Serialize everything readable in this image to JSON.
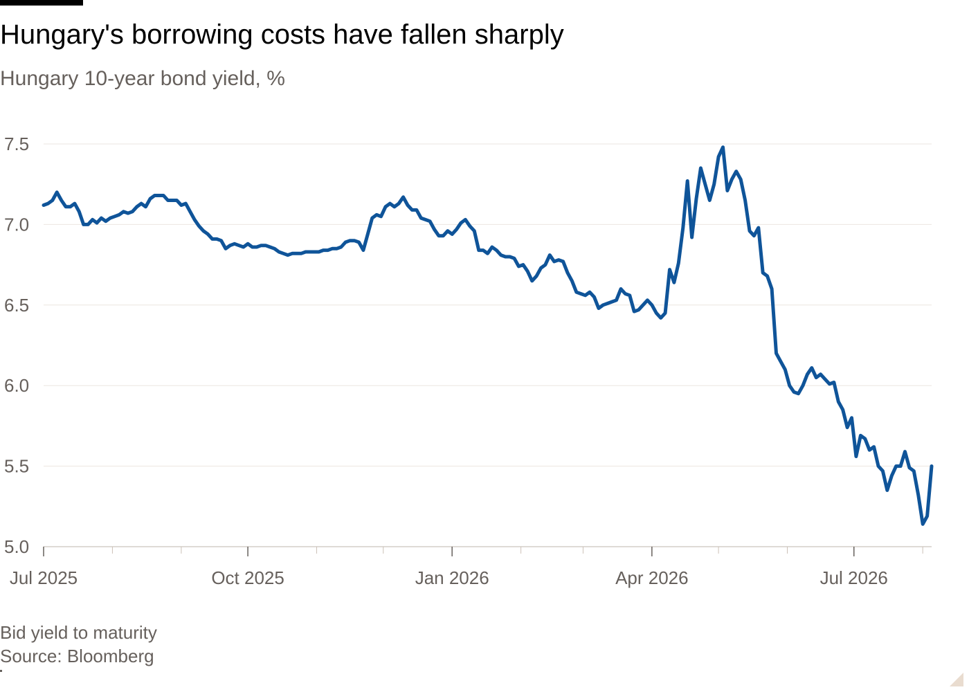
{
  "header": {
    "title": "Hungary's borrowing costs have fallen sharply",
    "subtitle": "Hungary 10-year bond yield, %"
  },
  "footer": {
    "note": "Bid yield to maturity",
    "source": "Source: Bloomberg"
  },
  "colors": {
    "line": "#0f5499",
    "grid": "#ebe6e0",
    "axis": "#66605c",
    "text_muted": "#66605c"
  },
  "chart_data": {
    "type": "line",
    "title": "Hungary's borrowing costs have fallen sharply",
    "subtitle": "Hungary 10-year bond yield, %",
    "xlabel": "",
    "ylabel": "",
    "ylim": [
      5.0,
      7.5
    ],
    "yticks": [
      {
        "value": 7.5,
        "label": "7.5"
      },
      {
        "value": 7.0,
        "label": "7.0"
      },
      {
        "value": 6.5,
        "label": "6.5"
      },
      {
        "value": 6.0,
        "label": "6.0"
      },
      {
        "value": 5.5,
        "label": "5.5"
      },
      {
        "value": 5.0,
        "label": "5.0"
      }
    ],
    "xlim": [
      "2025-07-01",
      "2026-08-05"
    ],
    "xticks_labeled": [
      {
        "date": "2025-07-01",
        "label": "Jul 2025"
      },
      {
        "date": "2025-10-01",
        "label": "Oct 2025"
      },
      {
        "date": "2026-01-01",
        "label": "Jan 2026"
      },
      {
        "date": "2026-04-01",
        "label": "Apr 2026"
      },
      {
        "date": "2026-07-01",
        "label": "Jul 2026"
      }
    ],
    "xticks_minor": [
      "2025-08-01",
      "2025-09-01",
      "2025-11-01",
      "2025-12-01",
      "2026-02-01",
      "2026-03-01",
      "2026-05-01",
      "2026-06-01",
      "2026-08-01"
    ],
    "grid": true,
    "legend": "none",
    "series": [
      {
        "color": "#0f5499",
        "points": [
          [
            "2025-07-01",
            7.12
          ],
          [
            "2025-07-03",
            7.13
          ],
          [
            "2025-07-05",
            7.15
          ],
          [
            "2025-07-07",
            7.2
          ],
          [
            "2025-07-09",
            7.15
          ],
          [
            "2025-07-11",
            7.11
          ],
          [
            "2025-07-13",
            7.11
          ],
          [
            "2025-07-15",
            7.13
          ],
          [
            "2025-07-17",
            7.08
          ],
          [
            "2025-07-19",
            7.0
          ],
          [
            "2025-07-21",
            7.0
          ],
          [
            "2025-07-23",
            7.03
          ],
          [
            "2025-07-25",
            7.01
          ],
          [
            "2025-07-27",
            7.04
          ],
          [
            "2025-07-29",
            7.02
          ],
          [
            "2025-07-31",
            7.04
          ],
          [
            "2025-08-02",
            7.05
          ],
          [
            "2025-08-04",
            7.06
          ],
          [
            "2025-08-06",
            7.08
          ],
          [
            "2025-08-08",
            7.07
          ],
          [
            "2025-08-10",
            7.08
          ],
          [
            "2025-08-12",
            7.11
          ],
          [
            "2025-08-14",
            7.13
          ],
          [
            "2025-08-16",
            7.11
          ],
          [
            "2025-08-18",
            7.16
          ],
          [
            "2025-08-20",
            7.18
          ],
          [
            "2025-08-22",
            7.18
          ],
          [
            "2025-08-24",
            7.18
          ],
          [
            "2025-08-26",
            7.15
          ],
          [
            "2025-08-28",
            7.15
          ],
          [
            "2025-08-30",
            7.15
          ],
          [
            "2025-09-01",
            7.12
          ],
          [
            "2025-09-03",
            7.13
          ],
          [
            "2025-09-05",
            7.08
          ],
          [
            "2025-09-07",
            7.03
          ],
          [
            "2025-09-09",
            6.99
          ],
          [
            "2025-09-11",
            6.96
          ],
          [
            "2025-09-13",
            6.94
          ],
          [
            "2025-09-15",
            6.91
          ],
          [
            "2025-09-17",
            6.91
          ],
          [
            "2025-09-19",
            6.9
          ],
          [
            "2025-09-21",
            6.85
          ],
          [
            "2025-09-23",
            6.87
          ],
          [
            "2025-09-25",
            6.88
          ],
          [
            "2025-09-27",
            6.87
          ],
          [
            "2025-09-29",
            6.86
          ],
          [
            "2025-10-01",
            6.88
          ],
          [
            "2025-10-03",
            6.86
          ],
          [
            "2025-10-05",
            6.86
          ],
          [
            "2025-10-07",
            6.87
          ],
          [
            "2025-10-09",
            6.87
          ],
          [
            "2025-10-11",
            6.86
          ],
          [
            "2025-10-13",
            6.85
          ],
          [
            "2025-10-15",
            6.83
          ],
          [
            "2025-10-17",
            6.82
          ],
          [
            "2025-10-19",
            6.81
          ],
          [
            "2025-10-21",
            6.82
          ],
          [
            "2025-10-23",
            6.82
          ],
          [
            "2025-10-25",
            6.82
          ],
          [
            "2025-10-27",
            6.83
          ],
          [
            "2025-10-29",
            6.83
          ],
          [
            "2025-10-31",
            6.83
          ],
          [
            "2025-11-02",
            6.83
          ],
          [
            "2025-11-04",
            6.84
          ],
          [
            "2025-11-06",
            6.84
          ],
          [
            "2025-11-08",
            6.85
          ],
          [
            "2025-11-10",
            6.85
          ],
          [
            "2025-11-12",
            6.86
          ],
          [
            "2025-11-14",
            6.89
          ],
          [
            "2025-11-16",
            6.9
          ],
          [
            "2025-11-18",
            6.9
          ],
          [
            "2025-11-20",
            6.89
          ],
          [
            "2025-11-22",
            6.84
          ],
          [
            "2025-11-24",
            6.94
          ],
          [
            "2025-11-26",
            7.04
          ],
          [
            "2025-11-28",
            7.06
          ],
          [
            "2025-11-30",
            7.05
          ],
          [
            "2025-12-02",
            7.11
          ],
          [
            "2025-12-04",
            7.13
          ],
          [
            "2025-12-06",
            7.11
          ],
          [
            "2025-12-08",
            7.13
          ],
          [
            "2025-12-10",
            7.17
          ],
          [
            "2025-12-12",
            7.12
          ],
          [
            "2025-12-14",
            7.09
          ],
          [
            "2025-12-16",
            7.09
          ],
          [
            "2025-12-18",
            7.04
          ],
          [
            "2025-12-20",
            7.03
          ],
          [
            "2025-12-22",
            7.02
          ],
          [
            "2025-12-24",
            6.97
          ],
          [
            "2025-12-26",
            6.93
          ],
          [
            "2025-12-28",
            6.93
          ],
          [
            "2025-12-30",
            6.96
          ],
          [
            "2026-01-01",
            6.94
          ],
          [
            "2026-01-03",
            6.97
          ],
          [
            "2026-01-05",
            7.01
          ],
          [
            "2026-01-07",
            7.03
          ],
          [
            "2026-01-09",
            6.99
          ],
          [
            "2026-01-11",
            6.96
          ],
          [
            "2026-01-13",
            6.84
          ],
          [
            "2026-01-15",
            6.84
          ],
          [
            "2026-01-17",
            6.82
          ],
          [
            "2026-01-19",
            6.86
          ],
          [
            "2026-01-21",
            6.84
          ],
          [
            "2026-01-23",
            6.81
          ],
          [
            "2026-01-25",
            6.8
          ],
          [
            "2026-01-27",
            6.8
          ],
          [
            "2026-01-29",
            6.79
          ],
          [
            "2026-01-31",
            6.74
          ],
          [
            "2026-02-02",
            6.75
          ],
          [
            "2026-02-04",
            6.71
          ],
          [
            "2026-02-06",
            6.65
          ],
          [
            "2026-02-08",
            6.68
          ],
          [
            "2026-02-10",
            6.73
          ],
          [
            "2026-02-12",
            6.75
          ],
          [
            "2026-02-14",
            6.81
          ],
          [
            "2026-02-16",
            6.77
          ],
          [
            "2026-02-18",
            6.78
          ],
          [
            "2026-02-20",
            6.77
          ],
          [
            "2026-02-22",
            6.7
          ],
          [
            "2026-02-24",
            6.65
          ],
          [
            "2026-02-26",
            6.58
          ],
          [
            "2026-02-28",
            6.57
          ],
          [
            "2026-03-02",
            6.56
          ],
          [
            "2026-03-04",
            6.58
          ],
          [
            "2026-03-06",
            6.55
          ],
          [
            "2026-03-08",
            6.48
          ],
          [
            "2026-03-10",
            6.5
          ],
          [
            "2026-03-12",
            6.51
          ],
          [
            "2026-03-14",
            6.52
          ],
          [
            "2026-03-16",
            6.53
          ],
          [
            "2026-03-18",
            6.6
          ],
          [
            "2026-03-20",
            6.57
          ],
          [
            "2026-03-22",
            6.56
          ],
          [
            "2026-03-24",
            6.46
          ],
          [
            "2026-03-26",
            6.47
          ],
          [
            "2026-03-28",
            6.5
          ],
          [
            "2026-03-30",
            6.53
          ],
          [
            "2026-04-01",
            6.5
          ],
          [
            "2026-04-03",
            6.45
          ],
          [
            "2026-04-05",
            6.42
          ],
          [
            "2026-04-07",
            6.45
          ],
          [
            "2026-04-09",
            6.72
          ],
          [
            "2026-04-11",
            6.64
          ],
          [
            "2026-04-13",
            6.76
          ],
          [
            "2026-04-15",
            6.98
          ],
          [
            "2026-04-17",
            7.27
          ],
          [
            "2026-04-19",
            6.92
          ],
          [
            "2026-04-21",
            7.16
          ],
          [
            "2026-04-23",
            7.35
          ],
          [
            "2026-04-25",
            7.25
          ],
          [
            "2026-04-27",
            7.15
          ],
          [
            "2026-04-29",
            7.25
          ],
          [
            "2026-05-01",
            7.42
          ],
          [
            "2026-05-03",
            7.48
          ],
          [
            "2026-05-05",
            7.21
          ],
          [
            "2026-05-07",
            7.28
          ],
          [
            "2026-05-09",
            7.33
          ],
          [
            "2026-05-11",
            7.28
          ],
          [
            "2026-05-13",
            7.15
          ],
          [
            "2026-05-15",
            6.96
          ],
          [
            "2026-05-17",
            6.93
          ],
          [
            "2026-05-19",
            6.98
          ],
          [
            "2026-05-21",
            6.7
          ],
          [
            "2026-05-23",
            6.68
          ],
          [
            "2026-05-25",
            6.6
          ],
          [
            "2026-05-27",
            6.2
          ],
          [
            "2026-05-29",
            6.15
          ],
          [
            "2026-05-31",
            6.1
          ],
          [
            "2026-06-02",
            6.0
          ],
          [
            "2026-06-04",
            5.96
          ],
          [
            "2026-06-06",
            5.95
          ],
          [
            "2026-06-08",
            6.0
          ],
          [
            "2026-06-10",
            6.07
          ],
          [
            "2026-06-12",
            6.11
          ],
          [
            "2026-06-14",
            6.05
          ],
          [
            "2026-06-16",
            6.07
          ],
          [
            "2026-06-18",
            6.04
          ],
          [
            "2026-06-20",
            6.01
          ],
          [
            "2026-06-22",
            6.02
          ],
          [
            "2026-06-24",
            5.9
          ],
          [
            "2026-06-26",
            5.85
          ],
          [
            "2026-06-28",
            5.74
          ],
          [
            "2026-06-30",
            5.8
          ],
          [
            "2026-07-02",
            5.56
          ],
          [
            "2026-07-04",
            5.69
          ],
          [
            "2026-07-06",
            5.67
          ],
          [
            "2026-07-08",
            5.6
          ],
          [
            "2026-07-10",
            5.62
          ],
          [
            "2026-07-12",
            5.5
          ],
          [
            "2026-07-14",
            5.47
          ],
          [
            "2026-07-16",
            5.35
          ],
          [
            "2026-07-18",
            5.44
          ],
          [
            "2026-07-20",
            5.5
          ],
          [
            "2026-07-22",
            5.5
          ],
          [
            "2026-07-24",
            5.59
          ],
          [
            "2026-07-26",
            5.49
          ],
          [
            "2026-07-28",
            5.47
          ],
          [
            "2026-07-30",
            5.32
          ],
          [
            "2026-08-01",
            5.14
          ],
          [
            "2026-08-03",
            5.19
          ],
          [
            "2026-08-05",
            5.5
          ]
        ]
      }
    ]
  }
}
